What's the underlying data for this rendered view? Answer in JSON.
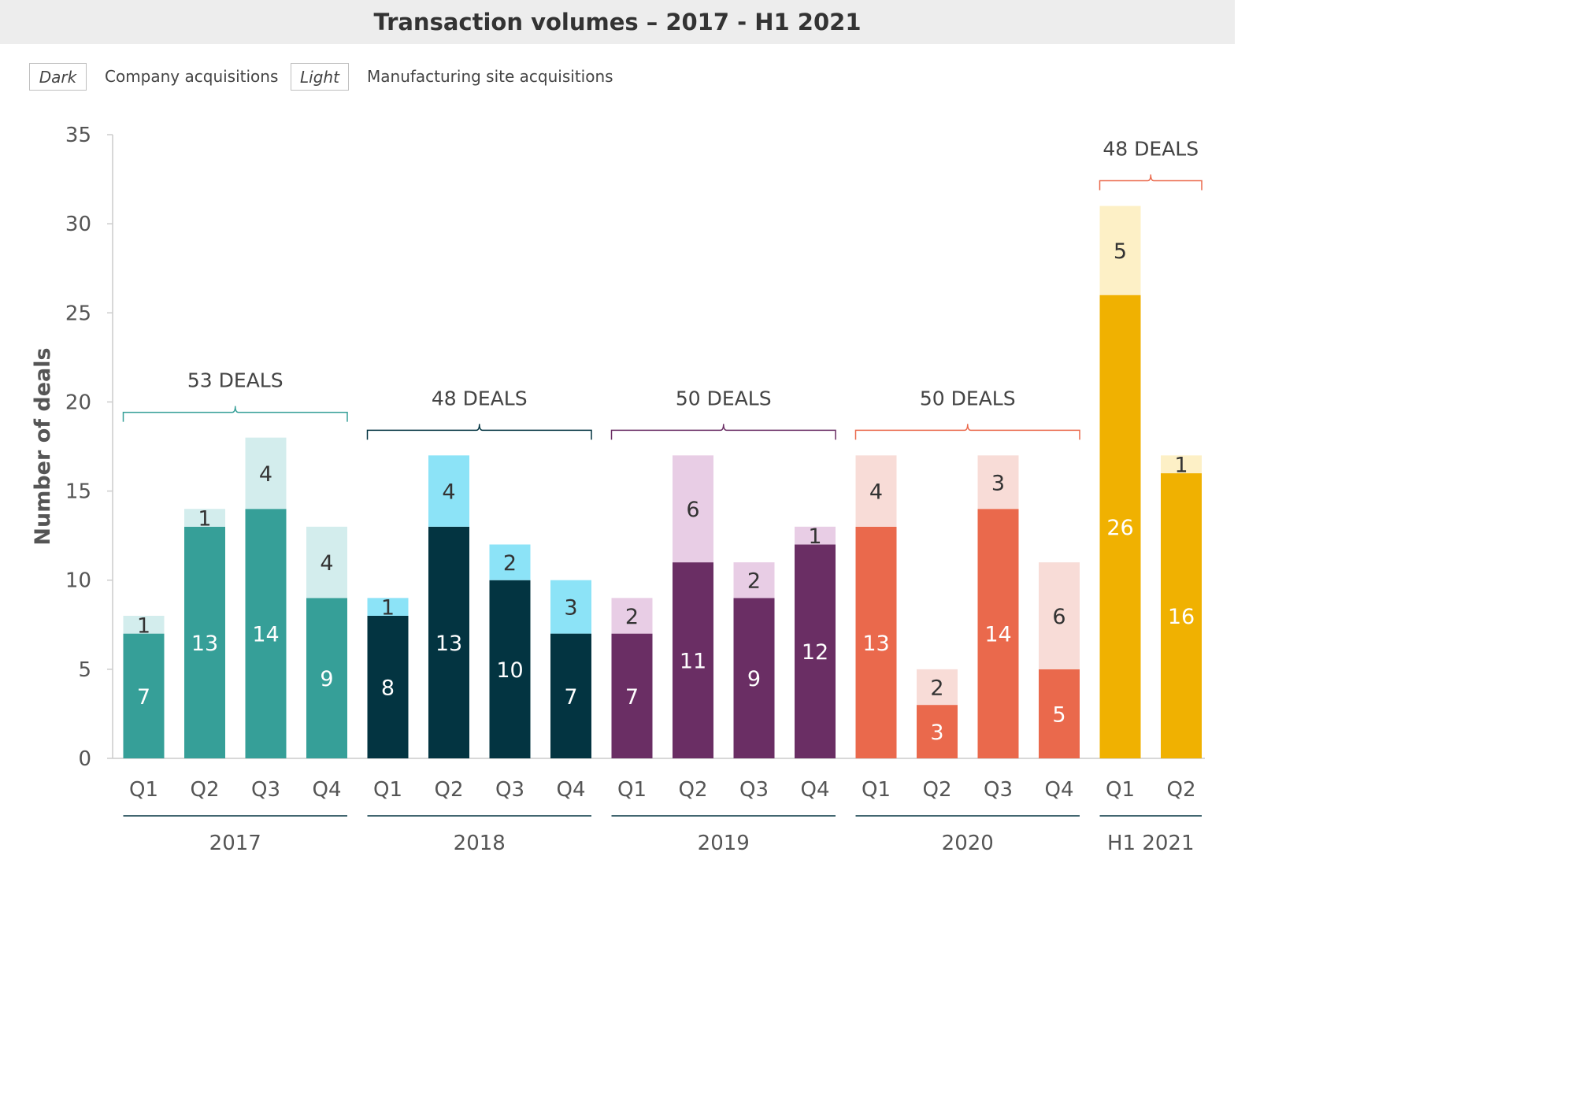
{
  "title": "Transaction volumes – 2017 - H1 2021",
  "legend": {
    "dark_box": "Dark",
    "dark_label": "Company acquisitions",
    "light_box": "Light",
    "light_label": "Manufacturing site acquisitions"
  },
  "chart_data": {
    "type": "bar",
    "stacked": true,
    "ylabel": "Number of deals",
    "ylim": [
      0,
      35
    ],
    "yticks": [
      0,
      5,
      10,
      15,
      20,
      25,
      30,
      35
    ],
    "grid": false,
    "categories": [
      "Q1",
      "Q2",
      "Q3",
      "Q4",
      "Q1",
      "Q2",
      "Q3",
      "Q4",
      "Q1",
      "Q2",
      "Q3",
      "Q4",
      "Q1",
      "Q2",
      "Q3",
      "Q4",
      "Q1",
      "Q2"
    ],
    "series": [
      {
        "name": "Company acquisitions",
        "values": [
          7,
          13,
          14,
          9,
          8,
          13,
          10,
          7,
          7,
          11,
          9,
          12,
          13,
          3,
          14,
          5,
          26,
          16
        ]
      },
      {
        "name": "Manufacturing site acquisitions",
        "values": [
          1,
          1,
          4,
          4,
          1,
          4,
          2,
          3,
          2,
          6,
          2,
          1,
          4,
          2,
          3,
          6,
          5,
          1
        ]
      }
    ],
    "groups": [
      {
        "label": "2017",
        "total": "53 DEALS",
        "start": 0,
        "count": 4,
        "dark": "#369f98",
        "light": "#d3eded",
        "bracket": "#369f98",
        "dark_text": "#ffffff"
      },
      {
        "label": "2018",
        "total": "48 DEALS",
        "start": 4,
        "count": 4,
        "dark": "#033441",
        "light": "#8ce3f7",
        "bracket": "#033441",
        "dark_text": "#ffffff"
      },
      {
        "label": "2019",
        "total": "50 DEALS",
        "start": 8,
        "count": 4,
        "dark": "#6a2e64",
        "light": "#e8cde5",
        "bracket": "#6a2e64",
        "dark_text": "#ffffff"
      },
      {
        "label": "2020",
        "total": "50 DEALS",
        "start": 12,
        "count": 4,
        "dark": "#ea694c",
        "light": "#f8dcd7",
        "bracket": "#ea694c",
        "dark_text": "#ffffff"
      },
      {
        "label": "H1 2021",
        "total": "48 DEALS",
        "start": 16,
        "count": 2,
        "dark": "#f0b101",
        "light": "#fdf0c6",
        "bracket": "#ea694c",
        "dark_text": "#ffffff"
      }
    ]
  }
}
